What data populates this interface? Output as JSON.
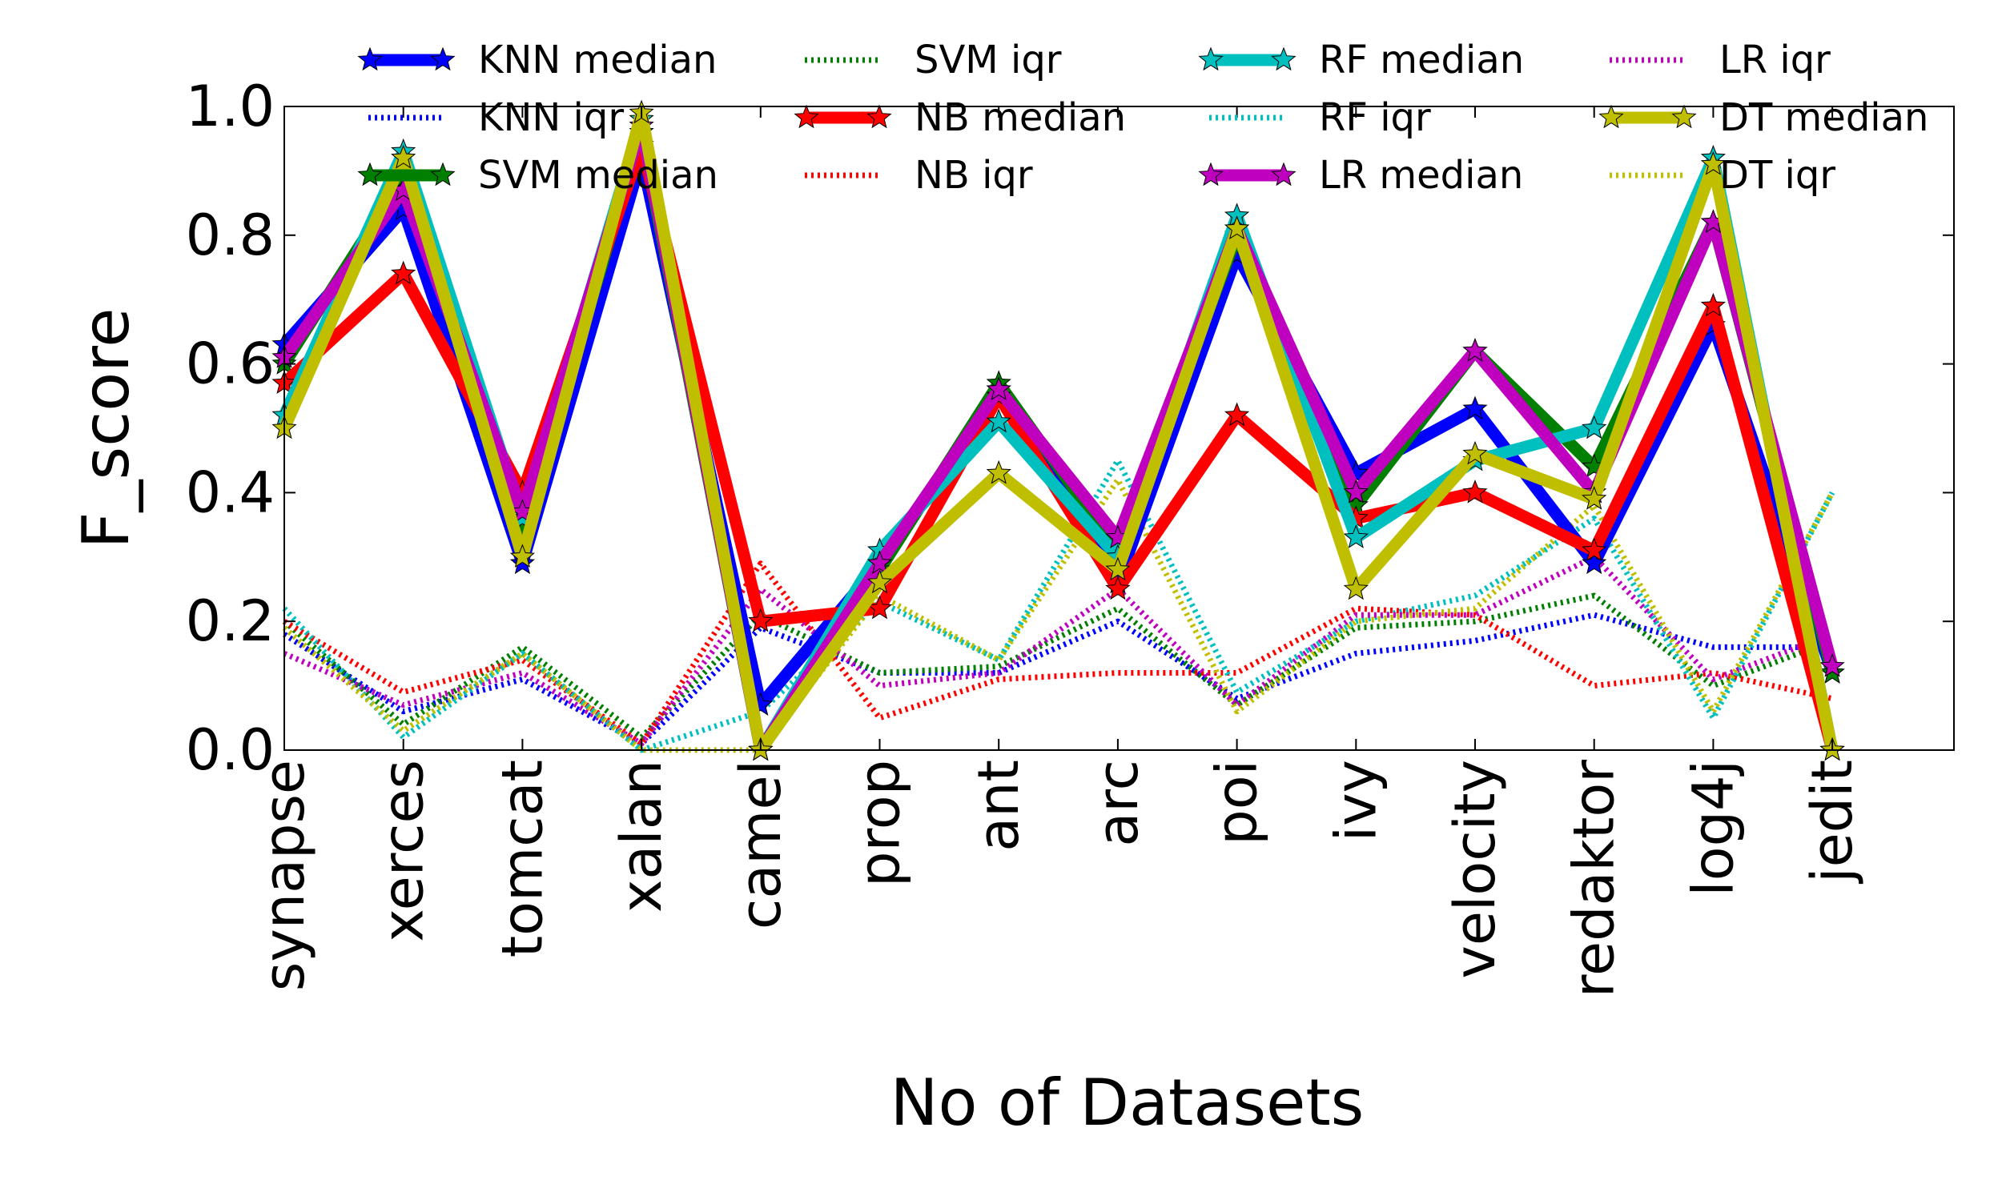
{
  "chart_data": {
    "type": "line",
    "title": "",
    "xlabel": "No of Datasets",
    "ylabel": "F_score",
    "ylim": [
      0.0,
      1.0
    ],
    "yticks": [
      "0.0",
      "0.2",
      "0.4",
      "0.6",
      "0.8",
      "1.0"
    ],
    "grid": false,
    "legend_position": "top",
    "categories": [
      "synapse",
      "xerces",
      "tomcat",
      "xalan",
      "camel",
      "prop",
      "ant",
      "arc",
      "poi",
      "ivy",
      "velocity",
      "redaktor",
      "log4j",
      "jedit"
    ],
    "series": [
      {
        "name": "KNN median",
        "kind": "median",
        "color": "#0000ff",
        "values": [
          0.63,
          0.84,
          0.29,
          0.92,
          0.07,
          0.29,
          0.56,
          0.26,
          0.77,
          0.43,
          0.53,
          0.29,
          0.66,
          0.12
        ]
      },
      {
        "name": "KNN iqr",
        "kind": "iqr",
        "color": "#0000ff",
        "values": [
          0.18,
          0.06,
          0.11,
          0.01,
          0.19,
          0.12,
          0.12,
          0.2,
          0.08,
          0.15,
          0.17,
          0.21,
          0.16,
          0.16
        ]
      },
      {
        "name": "SVM median",
        "kind": "median",
        "color": "#007f00",
        "values": [
          0.6,
          0.89,
          0.34,
          0.96,
          0.0,
          0.28,
          0.57,
          0.31,
          0.8,
          0.38,
          0.62,
          0.44,
          0.82,
          0.12
        ]
      },
      {
        "name": "SVM iqr",
        "kind": "iqr",
        "color": "#007f00",
        "values": [
          0.2,
          0.04,
          0.16,
          0.02,
          0.21,
          0.12,
          0.13,
          0.22,
          0.07,
          0.19,
          0.2,
          0.24,
          0.1,
          0.17
        ]
      },
      {
        "name": "NB median",
        "kind": "median",
        "color": "#ff0000",
        "values": [
          0.57,
          0.74,
          0.4,
          0.94,
          0.2,
          0.22,
          0.55,
          0.25,
          0.52,
          0.36,
          0.4,
          0.31,
          0.69,
          0.0
        ]
      },
      {
        "name": "NB iqr",
        "kind": "iqr",
        "color": "#ff0000",
        "values": [
          0.2,
          0.09,
          0.14,
          0.01,
          0.29,
          0.05,
          0.11,
          0.12,
          0.12,
          0.22,
          0.21,
          0.1,
          0.12,
          0.08
        ]
      },
      {
        "name": "RF median",
        "kind": "median",
        "color": "#00bfbf",
        "values": [
          0.52,
          0.93,
          0.36,
          0.98,
          0.0,
          0.31,
          0.51,
          0.3,
          0.83,
          0.33,
          0.45,
          0.5,
          0.92,
          0.0
        ]
      },
      {
        "name": "RF iqr",
        "kind": "iqr",
        "color": "#00bfbf",
        "values": [
          0.22,
          0.02,
          0.15,
          0.0,
          0.06,
          0.23,
          0.14,
          0.45,
          0.09,
          0.2,
          0.24,
          0.36,
          0.05,
          0.4
        ]
      },
      {
        "name": "LR median",
        "kind": "median",
        "color": "#bf00bf",
        "values": [
          0.61,
          0.87,
          0.37,
          0.97,
          0.0,
          0.29,
          0.56,
          0.33,
          0.81,
          0.4,
          0.62,
          0.4,
          0.82,
          0.13
        ]
      },
      {
        "name": "LR iqr",
        "kind": "iqr",
        "color": "#bf00bf",
        "values": [
          0.15,
          0.07,
          0.12,
          0.01,
          0.25,
          0.1,
          0.12,
          0.25,
          0.07,
          0.21,
          0.21,
          0.3,
          0.11,
          0.18
        ]
      },
      {
        "name": "DT median",
        "kind": "median",
        "color": "#bfbf00",
        "values": [
          0.5,
          0.92,
          0.3,
          0.99,
          0.0,
          0.26,
          0.43,
          0.28,
          0.81,
          0.25,
          0.46,
          0.39,
          0.91,
          0.0
        ]
      },
      {
        "name": "DT iqr",
        "kind": "iqr",
        "color": "#bfbf00",
        "values": [
          0.19,
          0.03,
          0.15,
          0.0,
          0.0,
          0.24,
          0.14,
          0.42,
          0.06,
          0.2,
          0.22,
          0.38,
          0.06,
          0.4
        ]
      }
    ]
  }
}
